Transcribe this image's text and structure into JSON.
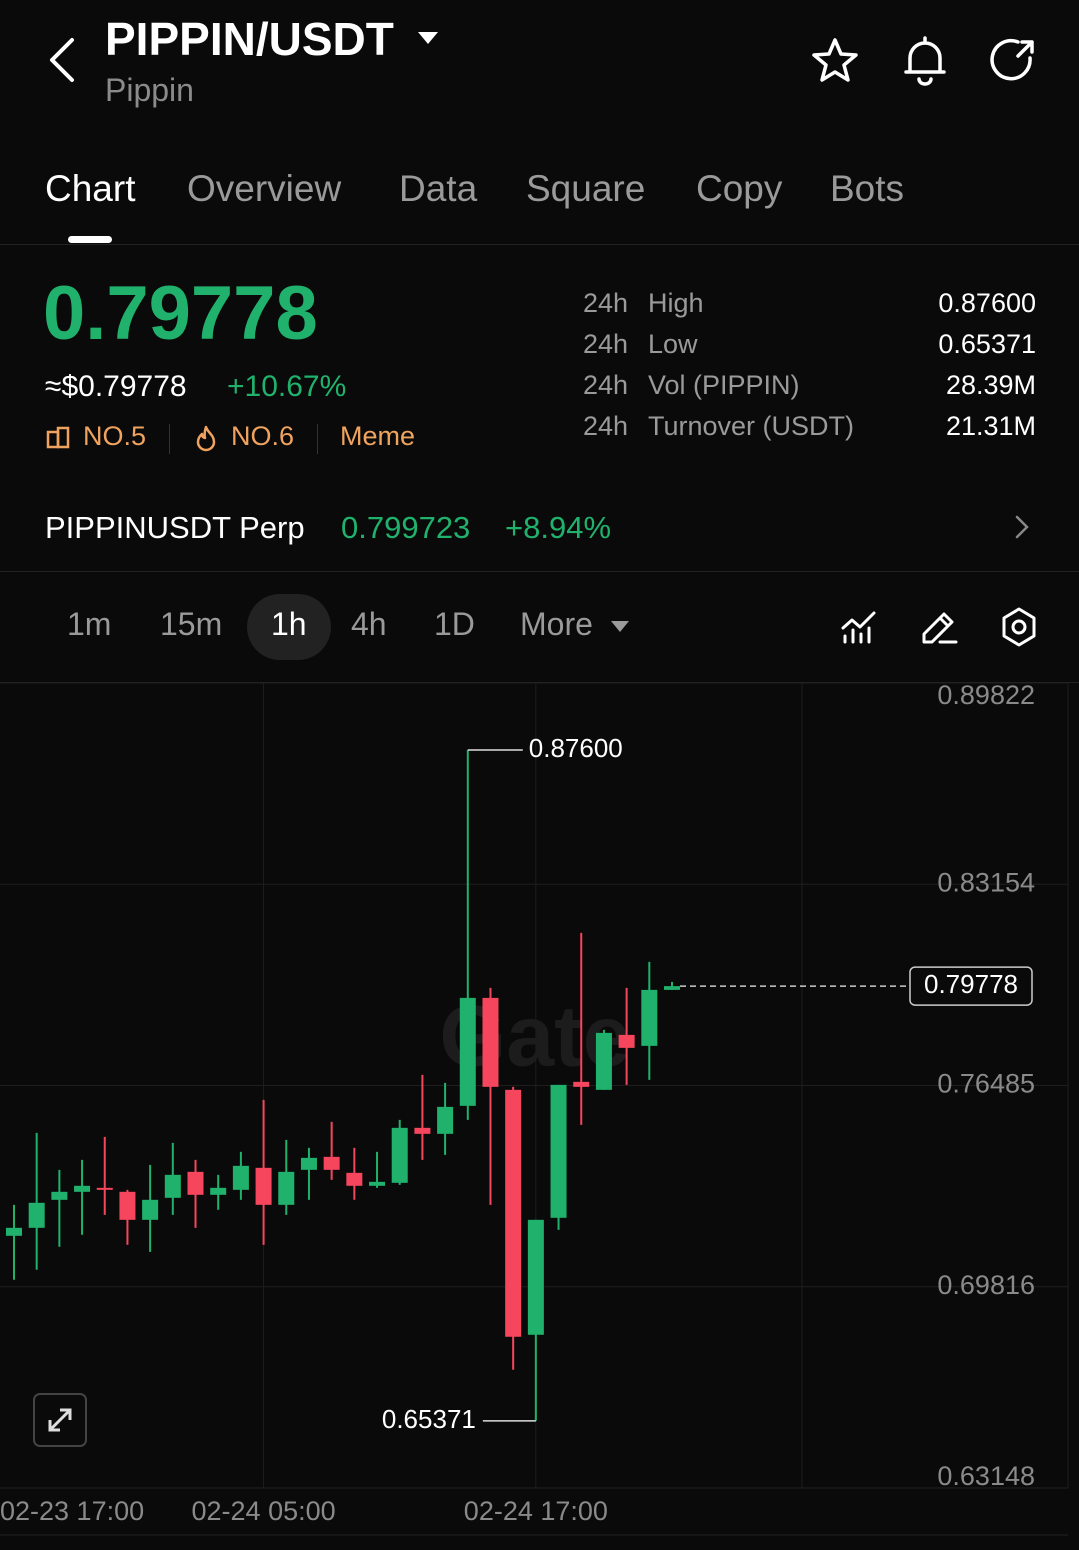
{
  "header": {
    "title": "PIPPIN/USDT",
    "subtitle": "Pippin"
  },
  "tabs": {
    "items": [
      "Chart",
      "Overview",
      "Data",
      "Square",
      "Copy",
      "Bots"
    ],
    "active": 0
  },
  "price": {
    "last": "0.79778",
    "usd": "≈$0.79778",
    "change": "+10.67%",
    "tags": [
      "NO.5",
      "NO.6",
      "Meme"
    ]
  },
  "stats": [
    {
      "period": "24h",
      "label": "High",
      "value": "0.87600"
    },
    {
      "period": "24h",
      "label": "Low",
      "value": "0.65371"
    },
    {
      "period": "24h",
      "label": "Vol (PIPPIN)",
      "value": "28.39M"
    },
    {
      "period": "24h",
      "label": "Turnover (USDT)",
      "value": "21.31M"
    }
  ],
  "perp": {
    "name": "PIPPINUSDT Perp",
    "price": "0.799723",
    "change": "+8.94%"
  },
  "intervals": {
    "items": [
      "1m",
      "15m",
      "1h",
      "4h",
      "1D",
      "More"
    ],
    "active": 2
  },
  "chart_data": {
    "type": "candlestick",
    "watermark": "Gate",
    "categories": [
      "02-23 17:00",
      null,
      null,
      null,
      null,
      null,
      null,
      null,
      null,
      null,
      null,
      null,
      "02-24 05:00",
      null,
      null,
      null,
      null,
      null,
      null,
      null,
      null,
      null,
      null,
      null,
      "02-24 17:00",
      null,
      null,
      null,
      null,
      null,
      null
    ],
    "open": [
      null,
      0.71504,
      0.71769,
      0.72697,
      0.72962,
      0.73094,
      0.72962,
      0.72034,
      0.72763,
      0.73624,
      0.72863,
      0.73028,
      0.73757,
      0.72531,
      0.73691,
      0.74121,
      0.73591,
      0.73161,
      0.7326,
      0.75082,
      0.74883,
      0.75811,
      0.79388,
      0.76341,
      0.68225,
      0.72101,
      0.76606,
      0.76341,
      0.78162,
      0.77798,
      0.79653
    ],
    "high": [
      null,
      0.72531,
      0.74916,
      0.73691,
      0.74022,
      0.74784,
      0.73028,
      0.73856,
      0.74585,
      0.74022,
      0.73525,
      0.74287,
      0.76009,
      0.74684,
      0.74419,
      0.75281,
      0.74419,
      0.74287,
      0.75347,
      0.76837,
      0.76572,
      0.876,
      0.79719,
      0.7644,
      0.72034,
      0.76506,
      0.81541,
      0.78328,
      0.79719,
      0.8058,
      0.79918
    ],
    "low": [
      null,
      0.70047,
      0.70378,
      0.7114,
      0.71538,
      0.722,
      0.71206,
      0.70974,
      0.722,
      0.71769,
      0.72366,
      0.72697,
      0.71206,
      0.722,
      0.72697,
      0.73359,
      0.72697,
      0.73094,
      0.73194,
      0.74022,
      0.74187,
      0.75347,
      0.72531,
      0.67066,
      0.65371,
      0.71703,
      0.75181,
      0.76341,
      0.76506,
      0.76672,
      0.79653
    ],
    "close": [
      null,
      0.71769,
      0.72598,
      0.72962,
      0.73161,
      0.73028,
      0.72034,
      0.72697,
      0.73525,
      0.72863,
      0.73094,
      0.73823,
      0.72531,
      0.73624,
      0.74088,
      0.73691,
      0.73161,
      0.73293,
      0.75082,
      0.74883,
      0.75777,
      0.79388,
      0.7644,
      0.68159,
      0.72034,
      0.76506,
      0.7644,
      0.78229,
      0.77732,
      0.79653,
      0.79778
    ],
    "up_color": "#20b26c",
    "down_color": "#f6465d",
    "ylim": [
      0.63148,
      0.89822
    ],
    "yticks": [
      0.63148,
      0.69816,
      0.76485,
      0.83154,
      0.89822
    ],
    "grid": true,
    "high_label": "0.87600",
    "low_label": "0.65371",
    "last_price_label": "0.79778"
  }
}
